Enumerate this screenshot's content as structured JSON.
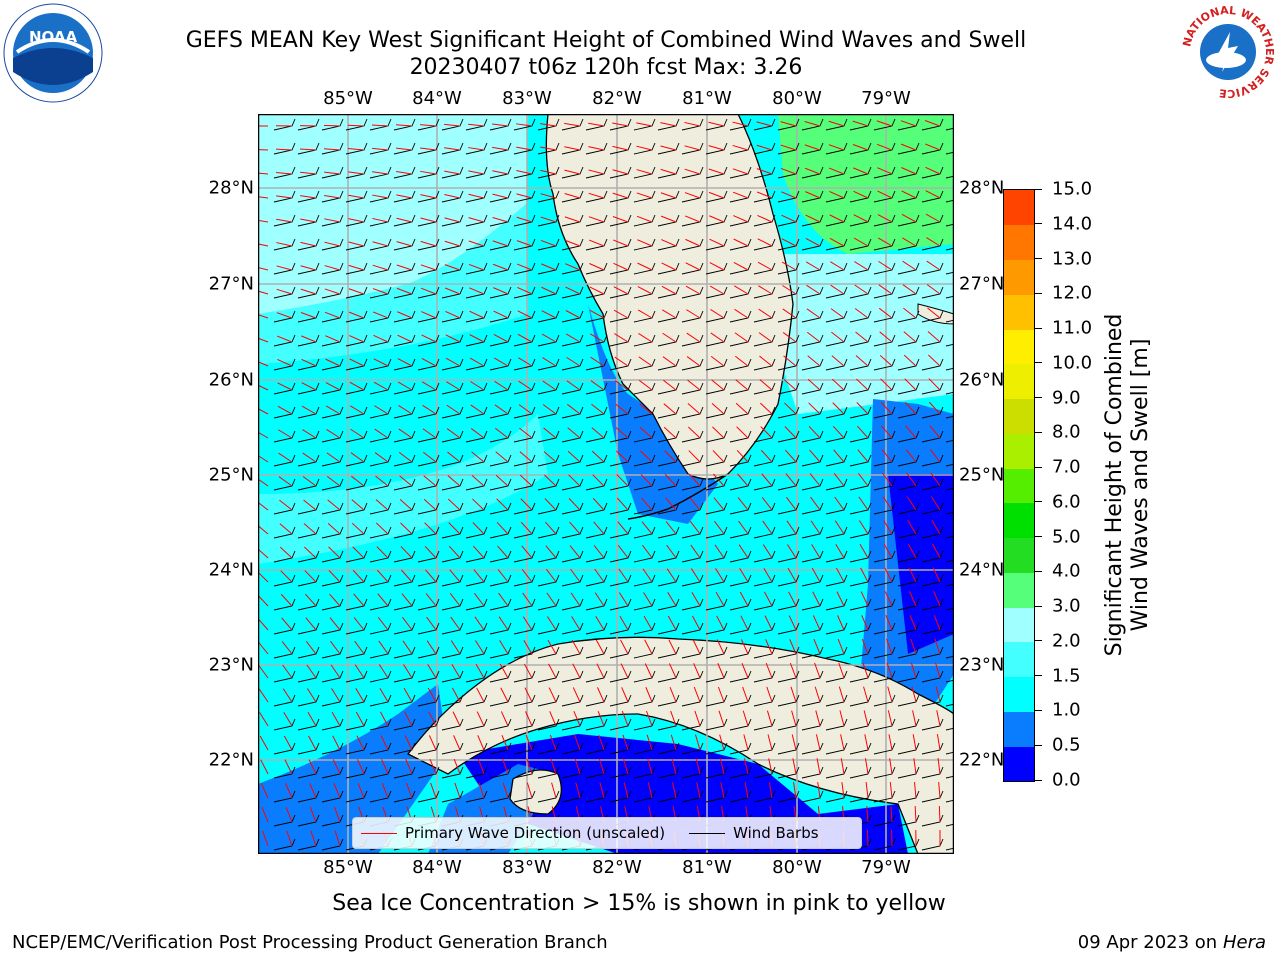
{
  "title": {
    "line1": "GEFS MEAN Key West Significant Height of Combined Wind Waves and Swell",
    "line2": "20230407 t06z 120h fcst   Max: 3.26"
  },
  "axes": {
    "lon_labels": [
      "85°W",
      "84°W",
      "83°W",
      "82°W",
      "81°W",
      "80°W",
      "79°W"
    ],
    "lat_labels": [
      "28°N",
      "27°N",
      "26°N",
      "25°N",
      "24°N",
      "23°N",
      "22°N"
    ]
  },
  "colorbar": {
    "title_line1": "Significant Height of Combined",
    "title_line2": "Wind Waves and Swell [m]",
    "levels": [
      "0.0",
      "0.5",
      "1.0",
      "1.5",
      "2.0",
      "3.0",
      "4.0",
      "5.0",
      "6.0",
      "7.0",
      "8.0",
      "9.0",
      "10.0",
      "11.0",
      "12.0",
      "13.0",
      "14.0",
      "15.0"
    ],
    "colors": [
      "#0000ff",
      "#0a7dff",
      "#00ffff",
      "#44ffff",
      "#a0ffff",
      "#55ff7a",
      "#22dd22",
      "#00e000",
      "#55ee00",
      "#aaee00",
      "#ccdd00",
      "#eeee00",
      "#ffee00",
      "#ffc000",
      "#ff9900",
      "#ff7700",
      "#ff4400",
      "#ff0000"
    ]
  },
  "legend": {
    "wave_label": "Primary Wave Direction (unscaled)",
    "wave_color": "#ff0000",
    "wind_label": "Wind Barbs",
    "wind_color": "#000000"
  },
  "subtitle": "Sea Ice Concentration > 15% is shown in pink to yellow",
  "footer": {
    "left": "NCEP/EMC/Verification Post Processing Product Generation Branch",
    "date": "09 Apr 2023 on ",
    "host": "Hera"
  },
  "logos": {
    "noaa": "NOAA",
    "nws_ring": "NATIONAL WEATHER SERVICE"
  },
  "colors": {
    "land": "#efedde",
    "grid": "#b0b0b0"
  }
}
